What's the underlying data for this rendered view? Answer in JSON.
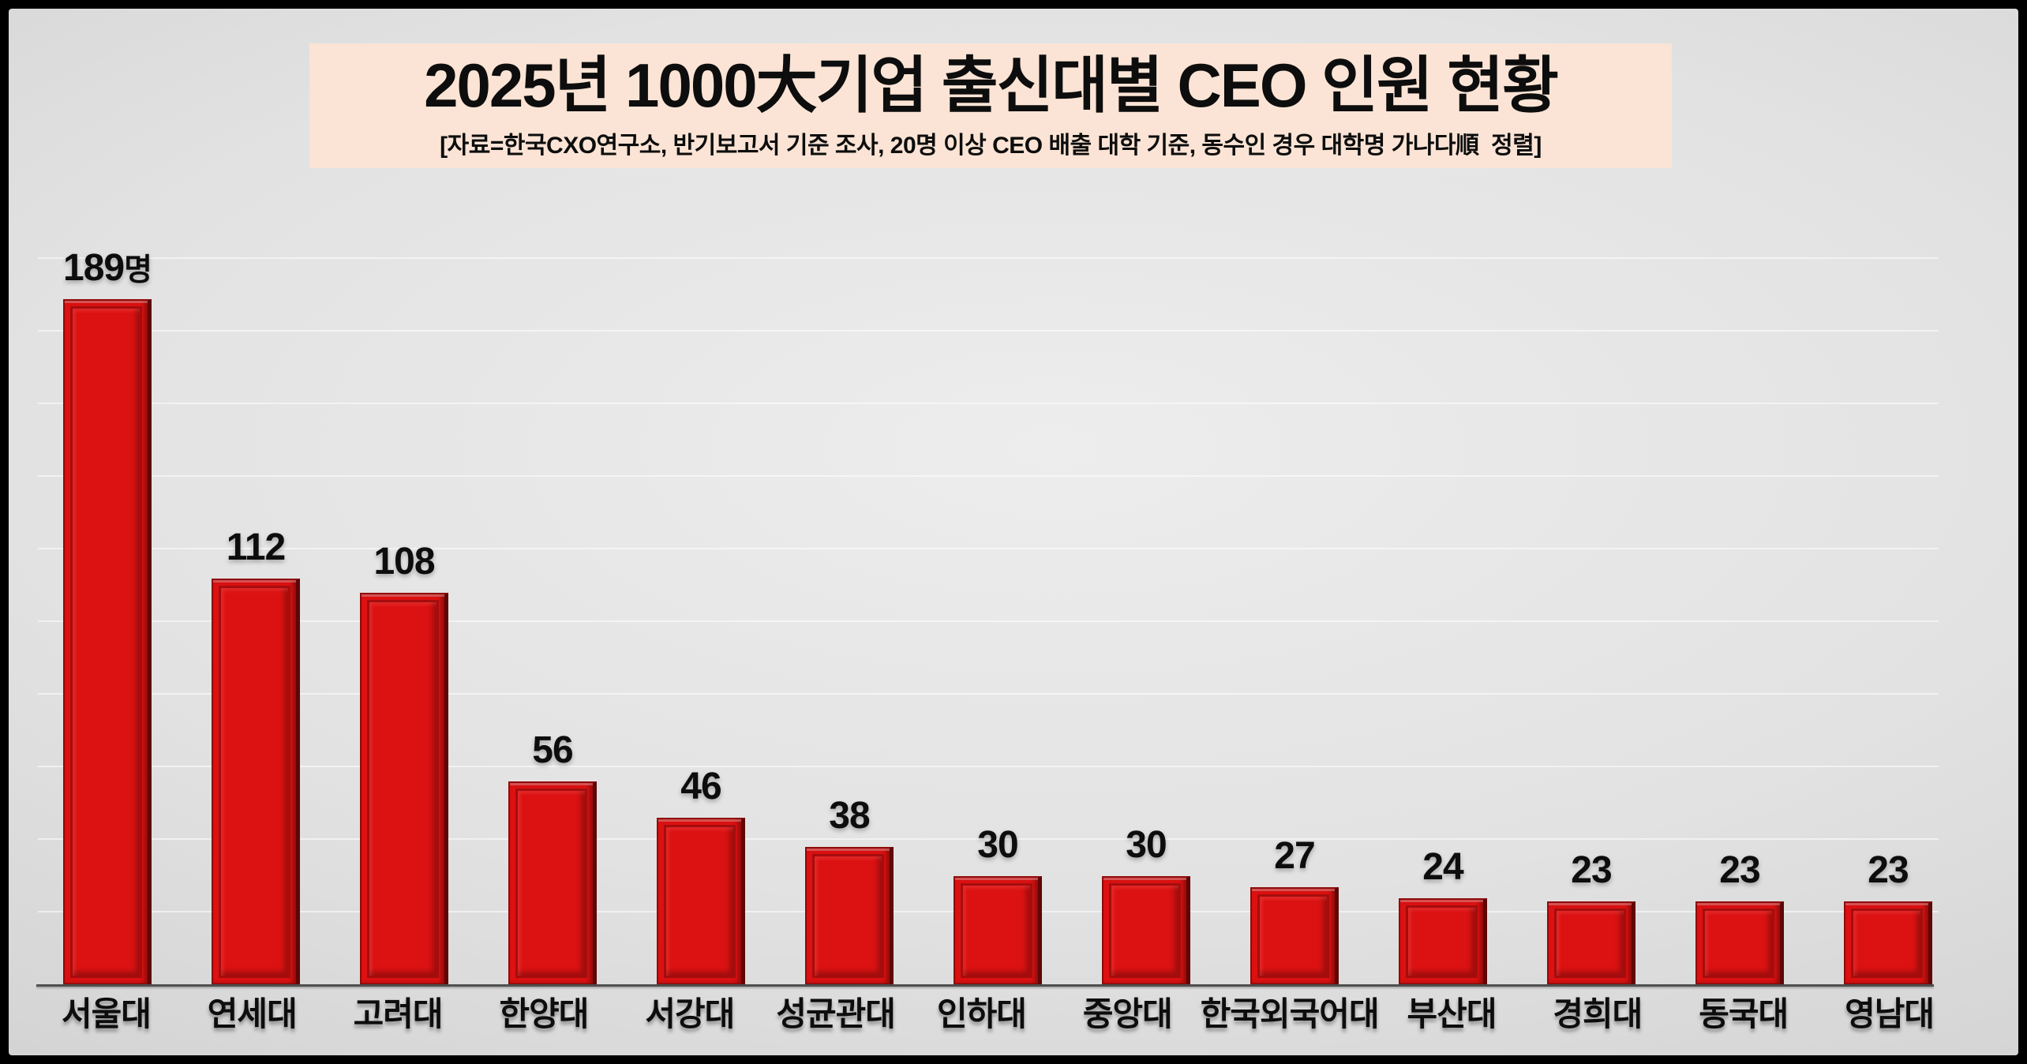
{
  "frame": {
    "border_color": "#000000",
    "background_top": "#ededed",
    "background_edge": "#c4c4c4"
  },
  "title_box": {
    "title": "2025년 1000大기업 출신대별 CEO 인원 현황",
    "subtitle": "[자료=한국CXO연구소, 반기보고서 기준 조사, 20명 이상 CEO 배출 대학 기준, 동수인 경우 대학명 가나다順  정렬]",
    "background": "#fbe4d5"
  },
  "chart_data": {
    "type": "bar",
    "title": "2025년 1000大기업 출신대별 CEO 인원 현황",
    "xlabel": "",
    "ylabel": "",
    "categories": [
      "서울대",
      "연세대",
      "고려대",
      "한양대",
      "서강대",
      "성균관대",
      "인하대",
      "중앙대",
      "한국외국어대",
      "부산대",
      "경희대",
      "동국대",
      "영남대"
    ],
    "values": [
      189,
      112,
      108,
      56,
      46,
      38,
      30,
      30,
      27,
      24,
      23,
      23,
      23
    ],
    "value_labels": [
      {
        "num": "189",
        "suffix": "명"
      },
      {
        "num": "112",
        "suffix": ""
      },
      {
        "num": "108",
        "suffix": ""
      },
      {
        "num": "56",
        "suffix": ""
      },
      {
        "num": "46",
        "suffix": ""
      },
      {
        "num": "38",
        "suffix": ""
      },
      {
        "num": "30",
        "suffix": ""
      },
      {
        "num": "30",
        "suffix": ""
      },
      {
        "num": "27",
        "suffix": ""
      },
      {
        "num": "24",
        "suffix": ""
      },
      {
        "num": "23",
        "suffix": ""
      },
      {
        "num": "23",
        "suffix": ""
      },
      {
        "num": "23",
        "suffix": ""
      }
    ],
    "unit": "명",
    "ylim": [
      0,
      200
    ],
    "gridline_step": 20,
    "grid": "horizontal-light",
    "legend_position": "none",
    "bar_color": "#dc1212",
    "bar_edge_color": "#8f0a0a",
    "bar_groove_color": "#a50d0d",
    "axis_line_color": "#4f4f4f",
    "label_color": "#0d0d0d"
  }
}
